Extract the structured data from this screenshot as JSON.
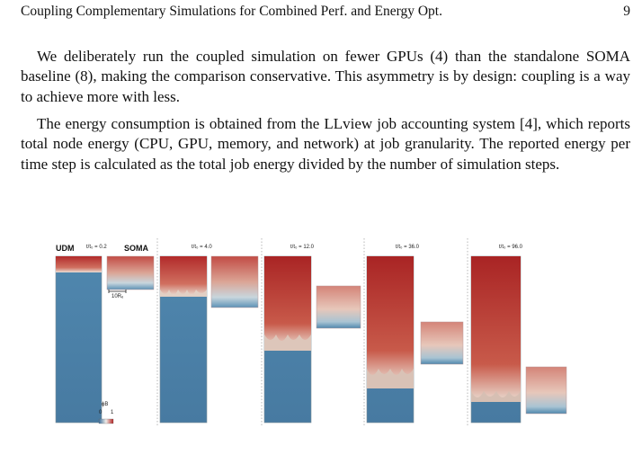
{
  "header": {
    "running_title": "Coupling Complementary Simulations for Combined Perf. and Energy Opt.",
    "page_number": "9"
  },
  "body": {
    "paragraph1": "We deliberately run the coupled simulation on fewer GPUs (4) than the standalone SOMA baseline (8), making the comparison conservative. This asymmetry is by design: coupling is a way to achieve more with less.",
    "paragraph2": "The energy consumption is obtained from the LLview job accounting system [4], which reports total node energy (CPU, GPU, memory, and network) at job granularity. The reported energy per time step is calculated as the total job energy divided by the number of simulation steps."
  },
  "figure": {
    "udm_label": "UDM",
    "soma_label": "SOMA",
    "panels": [
      {
        "time_label": "t/t₀ = 0.2"
      },
      {
        "time_label": "t/t₀ = 4.0"
      },
      {
        "time_label": "t/t₀ = 12.0"
      },
      {
        "time_label": "t/t₀ = 36.0"
      },
      {
        "time_label": "t/t₀ = 96.0"
      }
    ],
    "scalebar_label": "10Rₑ",
    "colorbar_label": "ϕB",
    "colorbar_min": "0",
    "colorbar_max": "1",
    "colors": {
      "blue": "#4a7fa6",
      "red": "#b92828",
      "white": "#f1ede8"
    }
  }
}
